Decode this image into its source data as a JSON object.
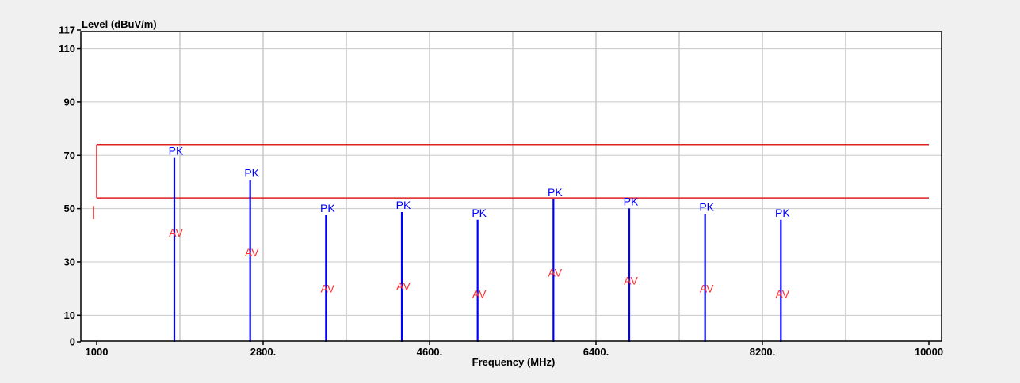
{
  "chart_data": {
    "type": "bar",
    "ylabel": "Level (dBuV/m)",
    "xlabel": "Frequency (MHz)",
    "xlim": [
      1000,
      10000
    ],
    "ylim": [
      0,
      117
    ],
    "x_tick_values": [
      1000,
      2800,
      4600,
      6400,
      8200,
      10000
    ],
    "x_tick_labels": [
      "1000",
      "2800.",
      "4600.",
      "6400.",
      "8200.",
      "10000"
    ],
    "y_tick_values": [
      0,
      10,
      30,
      50,
      70,
      90,
      110,
      117
    ],
    "y_tick_labels": [
      "0",
      "10",
      "30",
      "50",
      "70",
      "90",
      "110",
      "117"
    ],
    "grid": true,
    "series": [
      {
        "name": "PK",
        "color": "#0000ff",
        "points": [
          {
            "x": 1840,
            "y": 69.0
          },
          {
            "x": 2660,
            "y": 60.7
          },
          {
            "x": 3480,
            "y": 47.5
          },
          {
            "x": 4300,
            "y": 48.7
          },
          {
            "x": 5120,
            "y": 45.8
          },
          {
            "x": 5940,
            "y": 53.5
          },
          {
            "x": 6760,
            "y": 50.1
          },
          {
            "x": 7580,
            "y": 48.0
          },
          {
            "x": 8400,
            "y": 45.8
          }
        ]
      },
      {
        "name": "AV",
        "color": "#ff3030",
        "points": [
          {
            "x": 1840,
            "y": 41.0
          },
          {
            "x": 2660,
            "y": 33.5
          },
          {
            "x": 3480,
            "y": 20.0
          },
          {
            "x": 4300,
            "y": 21.0
          },
          {
            "x": 5120,
            "y": 18.0
          },
          {
            "x": 5940,
            "y": 26.0
          },
          {
            "x": 6760,
            "y": 23.0
          },
          {
            "x": 7580,
            "y": 20.0
          },
          {
            "x": 8400,
            "y": 18.0
          }
        ]
      }
    ],
    "limit_lines": [
      {
        "name": "PK limit",
        "y": 74,
        "x_start": 1000,
        "x_end": 10000,
        "color": "#dd2020"
      },
      {
        "name": "AV limit",
        "y": 54,
        "x_start": 1000,
        "x_end": 10000,
        "color": "#dd2020"
      }
    ]
  }
}
